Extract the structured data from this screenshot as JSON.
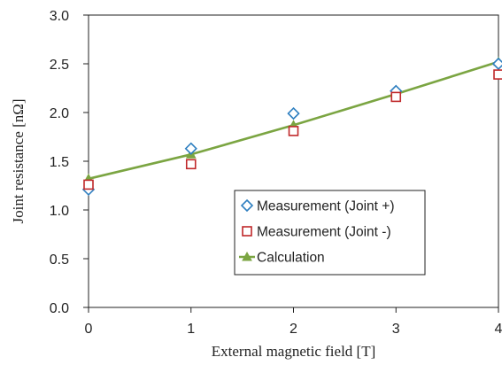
{
  "chart_data": {
    "type": "scatter",
    "title": "",
    "xlabel": "External magnetic field  [T]",
    "ylabel": "Joint resistance  [nΩ]",
    "xlim": [
      0,
      4
    ],
    "ylim": [
      0.0,
      3.0
    ],
    "x_ticks": [
      "0",
      "1",
      "2",
      "3",
      "4"
    ],
    "y_ticks": [
      "0.0",
      "0.5",
      "1.0",
      "1.5",
      "2.0",
      "2.5",
      "3.0"
    ],
    "grid": false,
    "legend_position": "lower-right",
    "series": [
      {
        "name": "Measurement (Joint +)",
        "marker": "diamond-open",
        "color": "#2e7fc0",
        "x": [
          0,
          1,
          2,
          3,
          4
        ],
        "y": [
          1.21,
          1.63,
          1.99,
          2.22,
          2.5
        ]
      },
      {
        "name": "Measurement (Joint -)",
        "marker": "square-open",
        "color": "#c0282a",
        "x": [
          0,
          1,
          2,
          3,
          4
        ],
        "y": [
          1.26,
          1.47,
          1.81,
          2.16,
          2.39
        ]
      },
      {
        "name": "Calculation",
        "marker": "triangle-filled-line",
        "color": "#7ba542",
        "x": [
          0,
          1,
          2,
          3,
          4
        ],
        "y": [
          1.32,
          1.57,
          1.87,
          2.19,
          2.52
        ]
      }
    ]
  }
}
